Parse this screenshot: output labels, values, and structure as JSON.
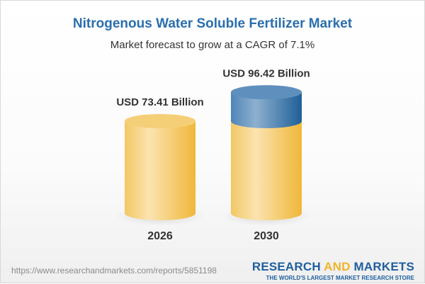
{
  "title": "Nitrogenous Water Soluble Fertilizer Market",
  "subtitle": "Market forecast to grow at a CAGR of 7.1%",
  "chart_data": {
    "type": "bar",
    "style": "3d-cylinder",
    "categories": [
      "2026",
      "2030"
    ],
    "values": [
      73.41,
      96.42
    ],
    "data_labels": [
      "USD 73.41 Billion",
      "USD 96.42 Billion"
    ],
    "unit": "USD Billion",
    "colors": {
      "base": "#f3c258",
      "growth": "#3f7fb5"
    }
  },
  "footer": {
    "url": "https://www.researchandmarkets.com/reports/5851198",
    "logo_part1": "RESEARCH",
    "logo_part2": "AND",
    "logo_part3": "MARKETS",
    "tagline": "THE WORLD'S LARGEST MARKET RESEARCH STORE"
  }
}
